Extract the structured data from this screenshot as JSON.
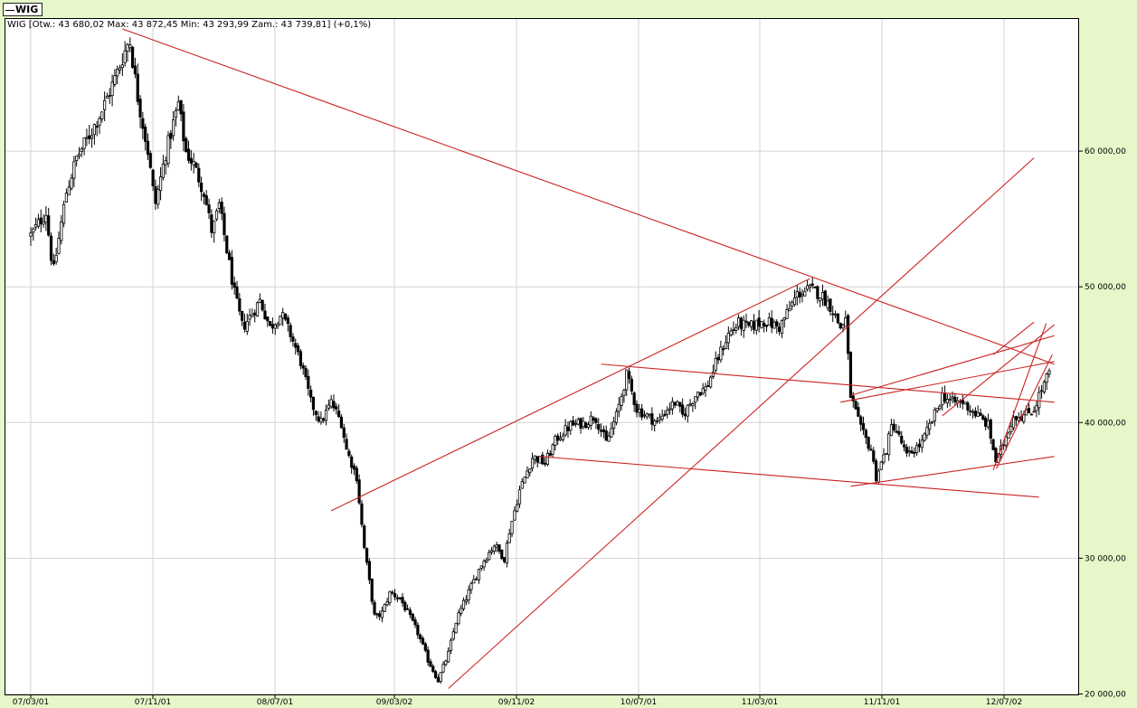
{
  "chart_data": {
    "type": "candlestick",
    "legend": "WIG",
    "info_line": "WIG [Otw.: 43 680,02  Max: 43 872,45  Min: 43 293,99  Zam.: 43 739,81] (+0,1%)",
    "ohlc_summary": {
      "open": 43680.02,
      "high": 43872.45,
      "low": 43293.99,
      "close": 43739.81,
      "change_pct": 0.1
    },
    "x_ticks": [
      "07/03/01",
      "07/11/01",
      "08/07/01",
      "09/03/02",
      "09/11/02",
      "10/07/01",
      "11/03/01",
      "11/11/01",
      "12/07/02"
    ],
    "y_ticks": [
      20000,
      30000,
      40000,
      50000,
      60000
    ],
    "y_tick_labels": [
      "20 000,00",
      "30 000,00",
      "40 000,00",
      "50 000,00",
      "60 000,00"
    ],
    "ylim": [
      19900,
      69800
    ],
    "grid": true,
    "colors": {
      "background": "#e6f7c9",
      "plot": "#ffffff",
      "grid": "#d3d3d3",
      "candle": "#000000",
      "trendline": "#cc2222"
    },
    "close_path": [
      [
        0.0,
        53800
      ],
      [
        1.5,
        55500
      ],
      [
        2.2,
        51000
      ],
      [
        3.5,
        57000
      ],
      [
        4.5,
        59500
      ],
      [
        6,
        61500
      ],
      [
        7,
        63000
      ],
      [
        8.5,
        65800
      ],
      [
        9.7,
        68300
      ],
      [
        10.5,
        64000
      ],
      [
        11.5,
        60000
      ],
      [
        12.2,
        56000
      ],
      [
        13.3,
        60000
      ],
      [
        14.5,
        63500
      ],
      [
        15.2,
        60000
      ],
      [
        16,
        59000
      ],
      [
        17,
        57000
      ],
      [
        17.8,
        54000
      ],
      [
        18.5,
        56000
      ],
      [
        19.3,
        52500
      ],
      [
        20,
        49500
      ],
      [
        20.8,
        47000
      ],
      [
        21.7,
        48000
      ],
      [
        22.5,
        49000
      ],
      [
        23.5,
        47000
      ],
      [
        24.6,
        48000
      ],
      [
        25.5,
        46500
      ],
      [
        26.5,
        44500
      ],
      [
        27.5,
        41500
      ],
      [
        28.5,
        40000
      ],
      [
        29.5,
        41500
      ],
      [
        30.5,
        40000
      ],
      [
        31,
        38000
      ],
      [
        32,
        36000
      ],
      [
        32.7,
        31000
      ],
      [
        33.3,
        28000
      ],
      [
        33.8,
        25500
      ],
      [
        34.5,
        26000
      ],
      [
        35.3,
        27500
      ],
      [
        36.3,
        27000
      ],
      [
        37,
        26000
      ],
      [
        38,
        24500
      ],
      [
        39,
        22500
      ],
      [
        40,
        21000
      ],
      [
        41,
        23000
      ],
      [
        41.8,
        25500
      ],
      [
        43,
        27500
      ],
      [
        44.2,
        29500
      ],
      [
        45.5,
        31000
      ],
      [
        46.5,
        30000
      ],
      [
        47,
        32000
      ],
      [
        48,
        35000
      ],
      [
        49.3,
        37500
      ],
      [
        50.5,
        37000
      ],
      [
        51.6,
        38800
      ],
      [
        53,
        39800
      ],
      [
        54.5,
        40000
      ],
      [
        55.4,
        40500
      ],
      [
        56.5,
        38500
      ],
      [
        57.5,
        40500
      ],
      [
        58.5,
        43500
      ],
      [
        59.5,
        41000
      ],
      [
        60.5,
        40500
      ],
      [
        61.5,
        40000
      ],
      [
        62.5,
        41000
      ],
      [
        63.3,
        41500
      ],
      [
        64,
        40500
      ],
      [
        65.5,
        42300
      ],
      [
        66.3,
        42500
      ],
      [
        67.5,
        44800
      ],
      [
        68.5,
        46500
      ],
      [
        69.5,
        47300
      ],
      [
        70.5,
        47000
      ],
      [
        72,
        47500
      ],
      [
        73.5,
        47000
      ],
      [
        74.8,
        48800
      ],
      [
        75.3,
        49500
      ],
      [
        76.5,
        49800
      ],
      [
        77.5,
        49500
      ],
      [
        78.6,
        48500
      ],
      [
        79.5,
        47000
      ],
      [
        80,
        47600
      ],
      [
        80.5,
        42000
      ],
      [
        81.5,
        39500
      ],
      [
        82.5,
        38000
      ],
      [
        83,
        36000
      ],
      [
        84,
        38000
      ],
      [
        84.6,
        40000
      ],
      [
        85.5,
        38500
      ],
      [
        86,
        37500
      ],
      [
        87.5,
        38500
      ],
      [
        88.7,
        40500
      ],
      [
        89.5,
        42000
      ],
      [
        90.5,
        41500
      ],
      [
        91.5,
        41500
      ],
      [
        93,
        40500
      ],
      [
        94,
        39800
      ],
      [
        94.8,
        37000
      ],
      [
        95.5,
        38500
      ],
      [
        96.5,
        40500
      ],
      [
        97.5,
        40500
      ],
      [
        98.5,
        41000
      ],
      [
        99,
        42000
      ],
      [
        100,
        43700
      ]
    ],
    "candles_per_unit": 4,
    "trendlines": [
      {
        "from": [
          9.0,
          69000
        ],
        "to": [
          100.5,
          44300
        ]
      },
      {
        "from": [
          41.0,
          20400
        ],
        "to": [
          98.5,
          59500
        ]
      },
      {
        "from": [
          29.5,
          33500
        ],
        "to": [
          76.5,
          50600
        ]
      },
      {
        "from": [
          56.0,
          44300
        ],
        "to": [
          100.5,
          41500
        ]
      },
      {
        "from": [
          50.0,
          37500
        ],
        "to": [
          99.0,
          34500
        ]
      },
      {
        "from": [
          80.5,
          35300
        ],
        "to": [
          100.5,
          37500
        ]
      },
      {
        "from": [
          79.5,
          41500
        ],
        "to": [
          100.5,
          44500
        ]
      },
      {
        "from": [
          80.5,
          42000
        ],
        "to": [
          100.5,
          46400
        ]
      },
      {
        "from": [
          94.5,
          36500
        ],
        "to": [
          99.7,
          47300
        ]
      },
      {
        "from": [
          94.8,
          36600
        ],
        "to": [
          100.3,
          45000
        ]
      },
      {
        "from": [
          89.5,
          40500
        ],
        "to": [
          100.5,
          47200
        ]
      },
      {
        "from": [
          94.5,
          45000
        ],
        "to": [
          98.5,
          47400
        ]
      }
    ]
  }
}
